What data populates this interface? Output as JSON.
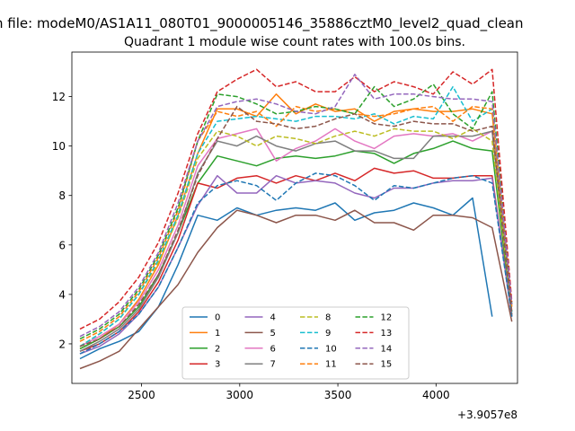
{
  "chart_data": {
    "type": "line",
    "suptitle": "n file: modeM0/AS1A11_080T01_9000005146_35886cztM0_level2_quad_clean",
    "title": "Quadrant 1 module wise count rates with 100.0s bins.",
    "xlabel": "",
    "ylabel": "",
    "x_offset_label": "+3.9057e8",
    "xlim": [
      2145,
      4415
    ],
    "ylim": [
      0.4,
      13.8
    ],
    "xticks": [
      2500,
      3000,
      3500,
      4000
    ],
    "xtick_labels": [
      "2500",
      "3000",
      "3500",
      "4000"
    ],
    "yticks": [
      2,
      4,
      6,
      8,
      10,
      12
    ],
    "ytick_labels": [
      "2",
      "4",
      "6",
      "8",
      "10",
      "12"
    ],
    "legend": {
      "position": "lower center",
      "ncol": 4
    },
    "x": [
      2186,
      2286,
      2386,
      2486,
      2586,
      2686,
      2786,
      2886,
      2986,
      3086,
      3186,
      3286,
      3386,
      3486,
      3586,
      3686,
      3786,
      3886,
      3986,
      4086,
      4186,
      4286,
      4386
    ],
    "series": [
      {
        "name": "0",
        "color": "#1f77b4",
        "dash": "solid",
        "values": [
          1.4,
          1.8,
          2.1,
          2.5,
          3.5,
          5.2,
          7.2,
          7.0,
          7.5,
          7.2,
          7.4,
          7.5,
          7.4,
          7.7,
          7.0,
          7.3,
          7.4,
          7.7,
          7.5,
          7.2,
          7.9,
          3.1,
          null
        ]
      },
      {
        "name": "1",
        "color": "#ff7f0e",
        "dash": "solid",
        "values": [
          1.8,
          2.2,
          2.8,
          3.8,
          5.2,
          7.2,
          9.7,
          11.5,
          11.5,
          11.2,
          12.1,
          11.3,
          11.7,
          11.4,
          11.5,
          11.0,
          11.4,
          11.5,
          11.4,
          11.4,
          11.5,
          11.3,
          3.3
        ]
      },
      {
        "name": "2",
        "color": "#2ca02c",
        "dash": "solid",
        "values": [
          1.8,
          2.2,
          2.7,
          3.5,
          4.8,
          6.5,
          8.5,
          9.6,
          9.4,
          9.2,
          9.5,
          9.6,
          9.5,
          9.6,
          9.8,
          9.7,
          9.3,
          9.7,
          9.9,
          10.2,
          9.9,
          9.8,
          3.1
        ]
      },
      {
        "name": "3",
        "color": "#d62728",
        "dash": "solid",
        "values": [
          1.7,
          2.0,
          2.5,
          3.3,
          4.5,
          6.2,
          8.5,
          8.3,
          8.7,
          8.8,
          8.5,
          8.8,
          8.6,
          8.9,
          8.6,
          9.1,
          8.9,
          9.0,
          8.7,
          8.7,
          8.8,
          8.8,
          3.1
        ]
      },
      {
        "name": "4",
        "color": "#9467bd",
        "dash": "solid",
        "values": [
          1.6,
          1.9,
          2.4,
          3.2,
          4.3,
          5.9,
          7.6,
          8.8,
          8.1,
          8.1,
          8.8,
          8.5,
          8.6,
          8.5,
          8.1,
          7.9,
          8.3,
          8.3,
          8.5,
          8.6,
          8.6,
          8.7,
          3.1
        ]
      },
      {
        "name": "5",
        "color": "#8c564b",
        "dash": "solid",
        "values": [
          1.0,
          1.3,
          1.7,
          2.6,
          3.5,
          4.4,
          5.7,
          6.7,
          7.4,
          7.2,
          6.9,
          7.2,
          7.2,
          7.0,
          7.4,
          6.9,
          6.9,
          6.6,
          7.2,
          7.2,
          7.1,
          6.7,
          2.9
        ]
      },
      {
        "name": "6",
        "color": "#e377c2",
        "dash": "solid",
        "values": [
          1.9,
          2.3,
          2.8,
          3.7,
          5.0,
          6.8,
          9.2,
          10.3,
          10.5,
          10.7,
          9.4,
          9.9,
          10.2,
          10.7,
          10.2,
          9.9,
          10.4,
          10.5,
          10.4,
          10.5,
          10.2,
          10.6,
          3.3
        ]
      },
      {
        "name": "7",
        "color": "#7f7f7f",
        "dash": "solid",
        "values": [
          1.7,
          2.1,
          2.6,
          3.4,
          4.7,
          6.5,
          8.9,
          10.2,
          10.0,
          10.4,
          10.0,
          9.8,
          10.1,
          10.2,
          9.8,
          9.8,
          9.5,
          9.5,
          10.4,
          10.4,
          10.4,
          10.6,
          3.2
        ]
      },
      {
        "name": "8",
        "color": "#bcbd22",
        "dash": "dashed",
        "values": [
          1.9,
          2.4,
          3.0,
          4.0,
          5.3,
          7.1,
          9.5,
          10.6,
          10.4,
          10.0,
          10.4,
          10.3,
          10.1,
          10.4,
          10.6,
          10.4,
          10.7,
          10.6,
          10.6,
          10.3,
          10.7,
          10.2,
          3.3
        ]
      },
      {
        "name": "9",
        "color": "#17becf",
        "dash": "dashed",
        "values": [
          1.9,
          2.4,
          3.0,
          4.0,
          5.4,
          7.2,
          9.7,
          11.0,
          11.1,
          11.2,
          11.1,
          11.0,
          11.2,
          11.2,
          11.1,
          11.3,
          10.9,
          11.2,
          11.1,
          12.4,
          11.0,
          11.5,
          3.3
        ]
      },
      {
        "name": "10",
        "color": "#1f77b4",
        "dash": "dashed",
        "values": [
          1.6,
          2.0,
          2.5,
          3.2,
          4.3,
          5.9,
          7.7,
          8.4,
          8.6,
          8.4,
          7.8,
          8.5,
          8.9,
          8.8,
          8.4,
          7.8,
          8.4,
          8.3,
          8.5,
          8.7,
          8.8,
          8.5,
          3.1
        ]
      },
      {
        "name": "11",
        "color": "#ff7f0e",
        "dash": "dashed",
        "values": [
          2.1,
          2.5,
          3.1,
          4.1,
          5.5,
          7.4,
          10.2,
          11.4,
          11.2,
          11.4,
          10.8,
          11.6,
          11.4,
          11.5,
          11.3,
          11.2,
          11.3,
          11.5,
          11.6,
          11.0,
          11.6,
          11.5,
          3.5
        ]
      },
      {
        "name": "12",
        "color": "#2ca02c",
        "dash": "dashed",
        "values": [
          2.2,
          2.6,
          3.2,
          4.2,
          5.6,
          7.5,
          10.2,
          12.1,
          12.0,
          11.7,
          11.3,
          11.4,
          11.6,
          11.5,
          11.3,
          12.4,
          11.6,
          11.9,
          12.5,
          11.3,
          10.7,
          12.2,
          3.6
        ]
      },
      {
        "name": "13",
        "color": "#d62728",
        "dash": "dashed",
        "values": [
          2.6,
          3.0,
          3.7,
          4.7,
          6.1,
          8.1,
          10.5,
          12.2,
          12.7,
          13.1,
          12.4,
          12.6,
          12.2,
          12.2,
          12.8,
          12.2,
          12.6,
          12.4,
          12.1,
          13.0,
          12.5,
          13.1,
          3.7
        ]
      },
      {
        "name": "14",
        "color": "#9467bd",
        "dash": "dashed",
        "values": [
          2.3,
          2.7,
          3.3,
          4.3,
          5.7,
          7.7,
          10.2,
          11.6,
          11.8,
          11.9,
          11.7,
          11.4,
          11.3,
          11.6,
          12.9,
          11.9,
          12.1,
          12.1,
          12.0,
          11.9,
          11.9,
          11.8,
          3.6
        ]
      },
      {
        "name": "15",
        "color": "#8c564b",
        "dash": "dashed",
        "values": [
          1.9,
          2.2,
          2.7,
          3.6,
          4.8,
          6.6,
          8.8,
          10.3,
          11.6,
          11.0,
          10.9,
          10.7,
          10.8,
          11.1,
          11.3,
          10.9,
          10.8,
          11.0,
          10.9,
          10.9,
          10.6,
          10.8,
          3.2
        ]
      }
    ]
  }
}
